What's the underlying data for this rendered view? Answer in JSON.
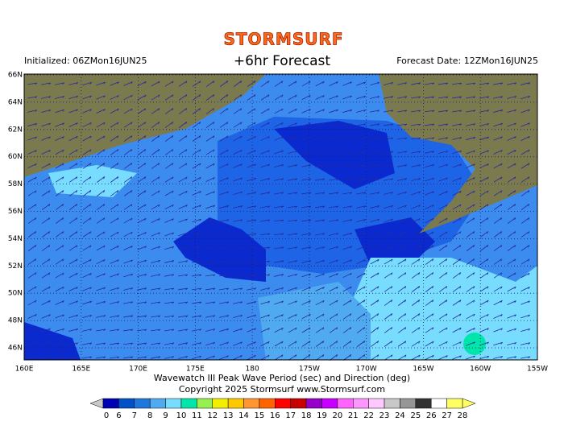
{
  "header": {
    "brand": "STORMSURF",
    "initialized": "Initialized: 06ZMon16JUN25",
    "title": "+6hr Forecast",
    "forecast_date": "Forecast Date: 12ZMon16JUN25"
  },
  "map": {
    "lat_labels": [
      "66N",
      "64N",
      "62N",
      "60N",
      "58N",
      "56N",
      "54N",
      "52N",
      "50N",
      "48N",
      "46N"
    ],
    "lon_labels": [
      "160E",
      "165E",
      "170E",
      "175E",
      "180",
      "175W",
      "170W",
      "165W",
      "160W",
      "155W"
    ]
  },
  "caption": [
    "Wavewatch III Peak Wave Period (sec) and Direction (deg)",
    "Copyright 2025 Stormsurf  www.Stormsurf.com"
  ],
  "colorbar": {
    "boundaries": [
      0,
      6,
      7,
      8,
      9,
      10,
      11,
      12,
      13,
      14,
      15,
      16,
      17,
      18,
      19,
      20,
      21,
      22,
      23,
      24,
      25,
      26,
      27,
      28
    ],
    "colors": [
      "#0000b4",
      "#0050c8",
      "#1e78dc",
      "#50aaf0",
      "#78dcff",
      "#00e6aa",
      "#96f050",
      "#f0f000",
      "#ffc800",
      "#ff9632",
      "#ff6400",
      "#ff0000",
      "#c80000",
      "#9600c8",
      "#c800ff",
      "#ff64ff",
      "#ff96ff",
      "#ffc8ff",
      "#c8c8c8",
      "#969696",
      "#323232",
      "#ffffff",
      "#ffff64"
    ]
  }
}
